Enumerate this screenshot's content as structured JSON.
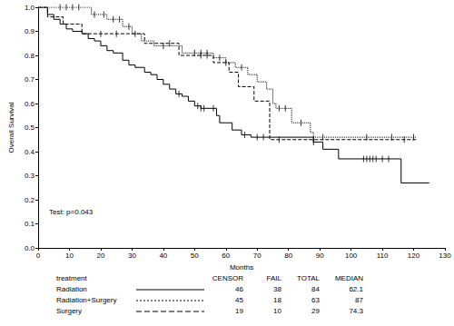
{
  "chart_data": {
    "type": "line",
    "x_label": "Months",
    "y_label": "Overall Survival",
    "annotation": "Test: p=0.043",
    "xlim": [
      0,
      130
    ],
    "xticks": [
      0,
      10,
      20,
      30,
      40,
      50,
      60,
      70,
      80,
      90,
      100,
      110,
      120,
      130
    ],
    "ylim": [
      0,
      1
    ],
    "yticks": [
      {
        "value": 0,
        "label": "0.0"
      },
      0.1,
      0.2,
      0.3,
      0.4,
      0.5,
      0.6,
      0.7,
      0.8,
      0.9,
      {
        "value": 1,
        "label": "1.0"
      }
    ],
    "grid": false,
    "table_header": [
      "treatment",
      "CENSOR",
      "FAIL",
      "TOTAL",
      "MEDIAN"
    ],
    "series": [
      {
        "name": "Radiation",
        "color": "#000000",
        "line_style": "solid",
        "marker": "vline",
        "censor": 46,
        "fail": 38,
        "total": 84,
        "median": 62.1,
        "x": [
          0,
          3,
          5,
          7,
          9,
          11,
          14,
          16,
          18,
          20,
          22,
          24,
          27,
          29,
          31,
          34,
          36,
          38,
          40,
          42,
          44,
          46,
          48,
          50,
          52,
          57,
          58,
          62,
          65,
          68,
          88,
          91,
          96,
          116,
          125
        ],
        "values": [
          1.0,
          0.97,
          0.95,
          0.93,
          0.91,
          0.9,
          0.89,
          0.87,
          0.86,
          0.84,
          0.82,
          0.81,
          0.78,
          0.76,
          0.75,
          0.73,
          0.72,
          0.7,
          0.68,
          0.66,
          0.64,
          0.63,
          0.61,
          0.59,
          0.58,
          0.55,
          0.52,
          0.49,
          0.47,
          0.46,
          0.44,
          0.41,
          0.37,
          0.27,
          0.27
        ],
        "censored_x": [
          45,
          51,
          52,
          53,
          56,
          66,
          70,
          72,
          88,
          104,
          105,
          106,
          107,
          108,
          110,
          112
        ],
        "censored_values": [
          0.64,
          0.59,
          0.58,
          0.58,
          0.58,
          0.47,
          0.46,
          0.46,
          0.44,
          0.37,
          0.37,
          0.37,
          0.37,
          0.37,
          0.37,
          0.37
        ]
      },
      {
        "name": "Radiation+Surgery",
        "color": "#000000",
        "line_style": "dotted",
        "marker": "vline",
        "censor": 45,
        "fail": 18,
        "total": 63,
        "median": 87,
        "x": [
          0,
          17,
          22,
          27,
          30,
          33,
          37,
          46,
          56,
          60,
          63,
          67,
          70,
          73,
          75,
          76,
          81,
          87,
          88,
          121
        ],
        "values": [
          1.0,
          0.97,
          0.95,
          0.92,
          0.89,
          0.86,
          0.84,
          0.81,
          0.79,
          0.77,
          0.75,
          0.72,
          0.69,
          0.66,
          0.6,
          0.58,
          0.52,
          0.48,
          0.46,
          0.46
        ],
        "censored_x": [
          7,
          9,
          11,
          13,
          18,
          21,
          24,
          26,
          29,
          31,
          40,
          50,
          52,
          54,
          58,
          65,
          77,
          79,
          84,
          91,
          105,
          113,
          120
        ],
        "censored_values": [
          1.0,
          1.0,
          1.0,
          1.0,
          0.97,
          0.97,
          0.95,
          0.95,
          0.92,
          0.89,
          0.84,
          0.81,
          0.81,
          0.81,
          0.79,
          0.75,
          0.58,
          0.58,
          0.52,
          0.46,
          0.46,
          0.46,
          0.46
        ]
      },
      {
        "name": "Surgery",
        "color": "#000000",
        "line_style": "dashed",
        "marker": "vline",
        "censor": 19,
        "fail": 10,
        "total": 29,
        "median": 74.3,
        "x": [
          0,
          3,
          8,
          14,
          34,
          45,
          56,
          61,
          64,
          69,
          74,
          121
        ],
        "values": [
          1.0,
          0.96,
          0.93,
          0.89,
          0.85,
          0.8,
          0.77,
          0.73,
          0.67,
          0.61,
          0.45,
          0.45
        ],
        "censored_x": [
          20,
          25,
          42,
          52,
          54,
          60,
          77,
          88,
          117
        ],
        "censored_values": [
          0.89,
          0.89,
          0.85,
          0.8,
          0.8,
          0.77,
          0.45,
          0.45,
          0.45
        ]
      }
    ]
  }
}
